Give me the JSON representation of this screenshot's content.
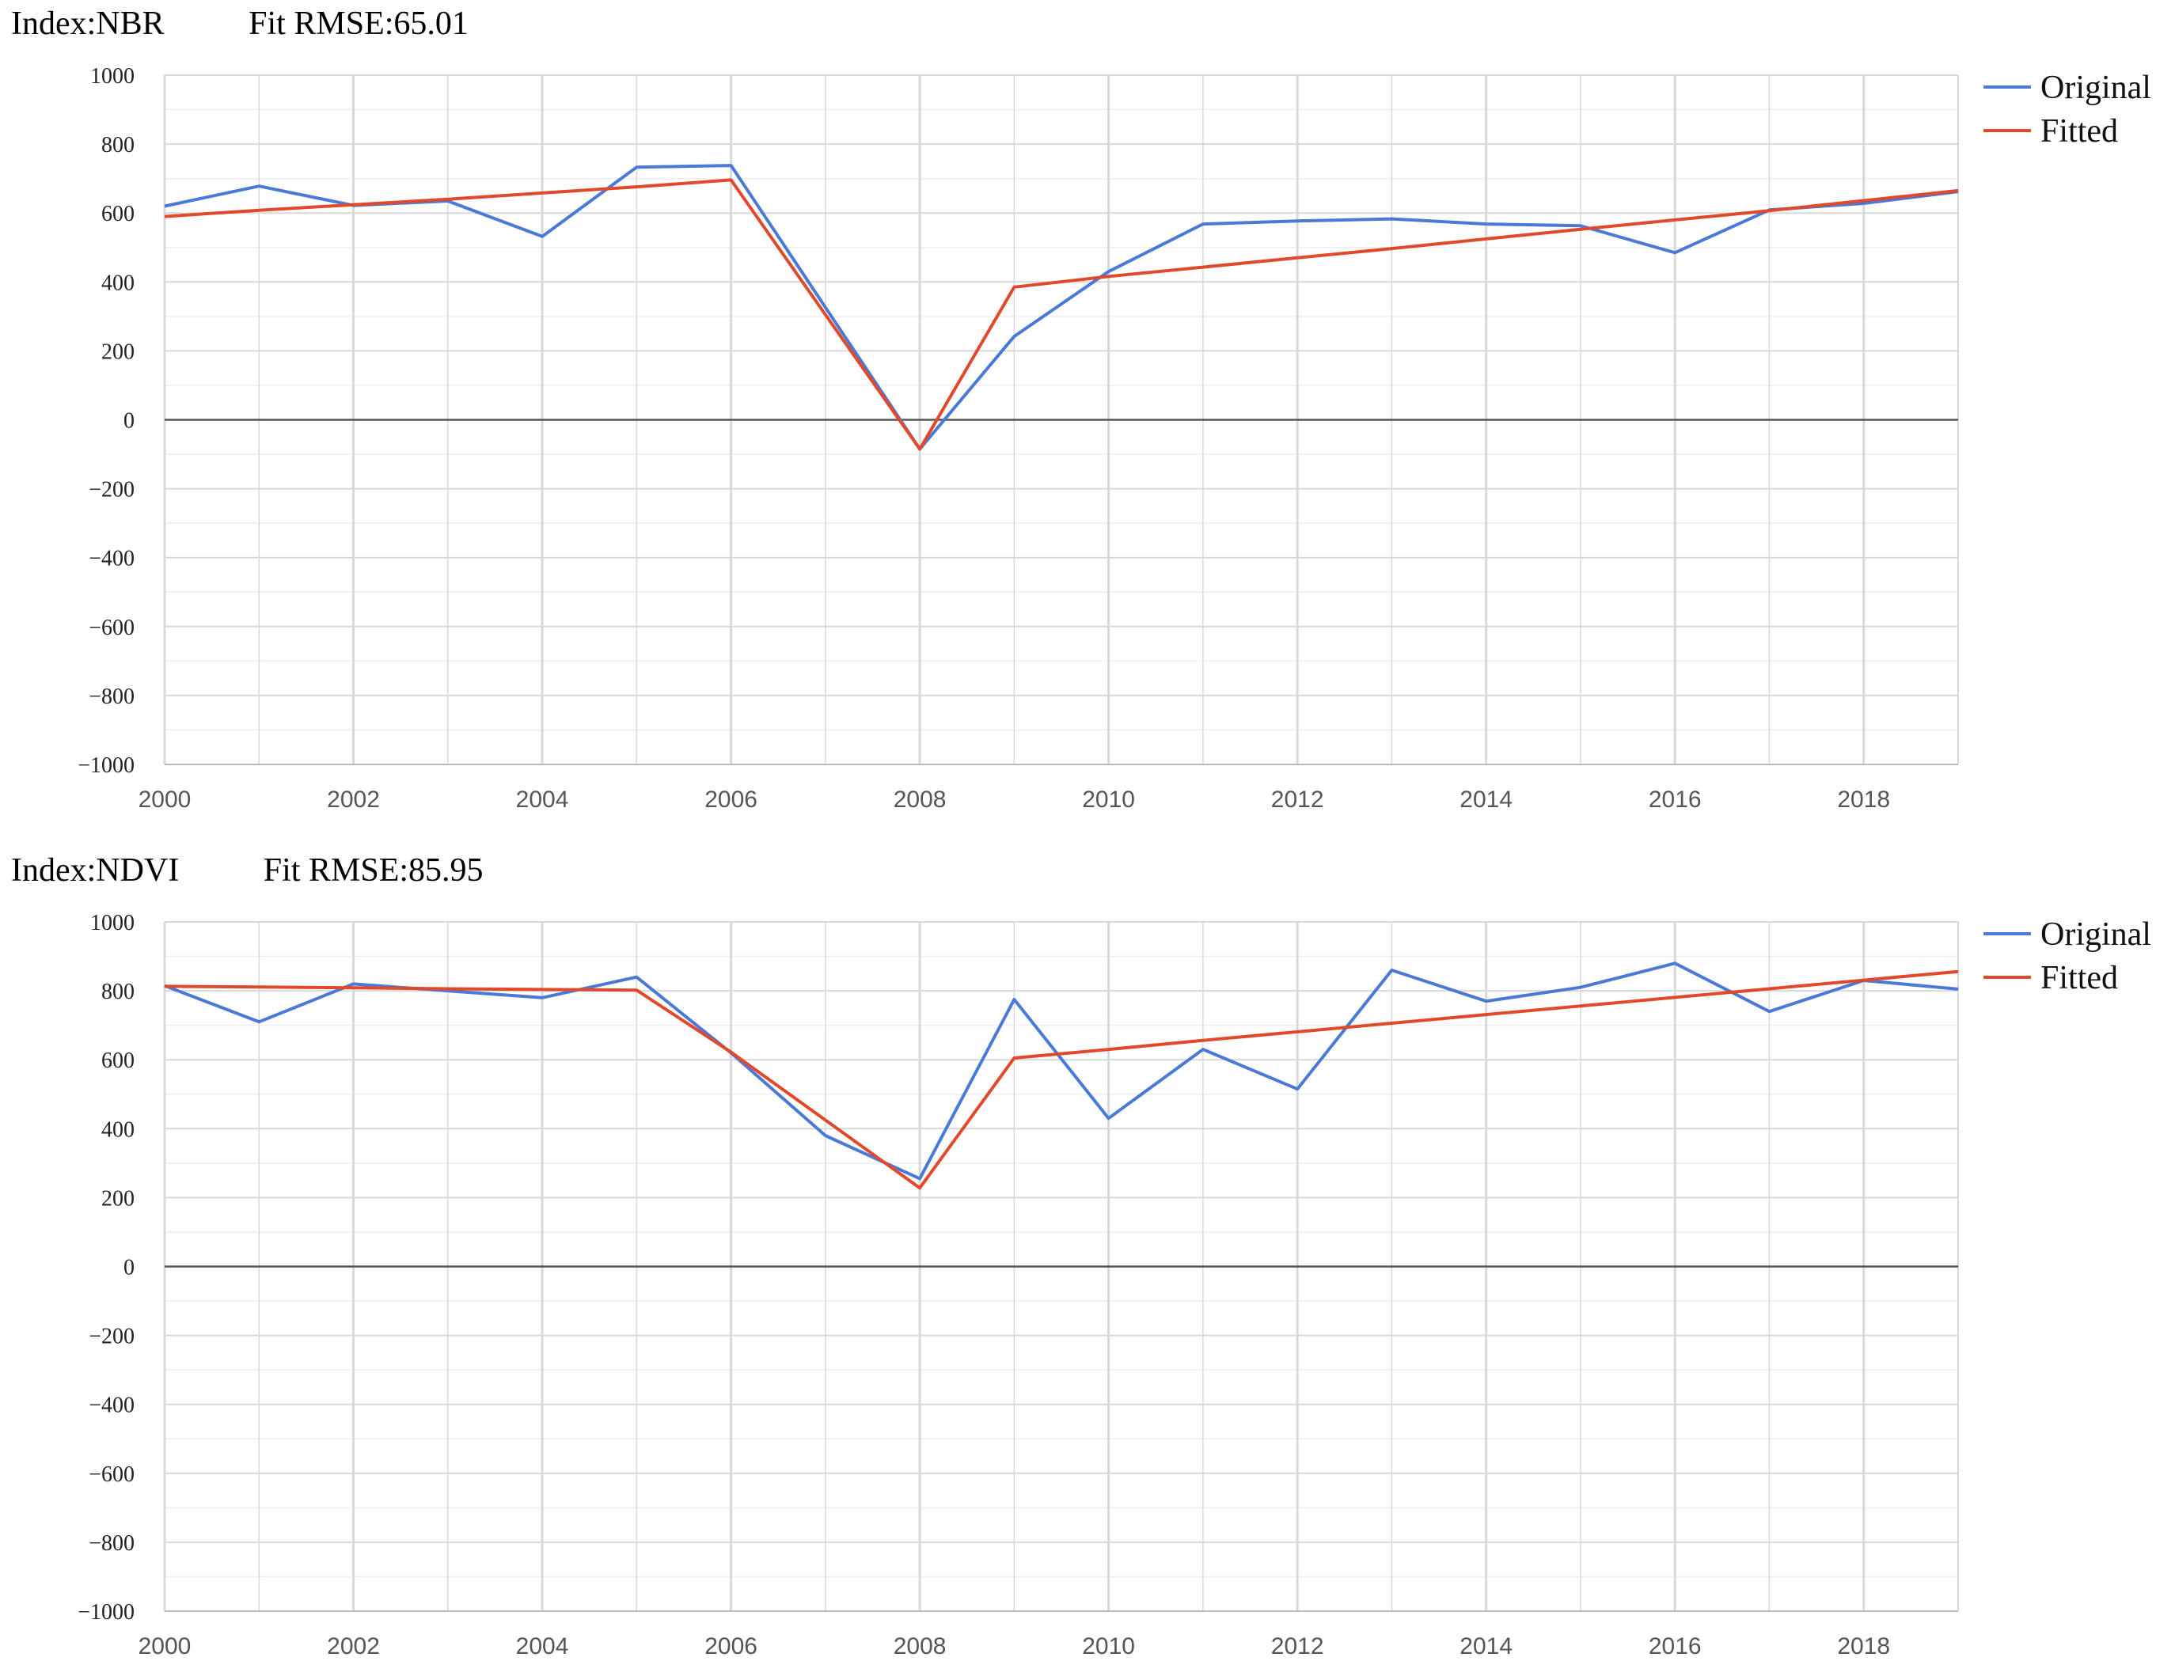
{
  "colors": {
    "original": "#4a7ad8",
    "fitted": "#e04a2a",
    "grid_major": "#d9d9d9",
    "grid_minor": "#eeeeee",
    "zero_line": "#555555"
  },
  "chart_data": [
    {
      "type": "line",
      "header": {
        "index_label": "Index:NBR",
        "rmse_label": "Fit RMSE:65.01"
      },
      "x": [
        2000,
        2001,
        2002,
        2003,
        2004,
        2005,
        2006,
        2007,
        2008,
        2009,
        2010,
        2011,
        2012,
        2013,
        2014,
        2015,
        2016,
        2017,
        2018,
        2019
      ],
      "xlim": [
        2000,
        2019
      ],
      "ylim": [
        -1000,
        1000
      ],
      "x_ticks": [
        2000,
        2002,
        2004,
        2006,
        2008,
        2010,
        2012,
        2014,
        2016,
        2018
      ],
      "y_ticks": [
        1000,
        800,
        600,
        400,
        200,
        0,
        -200,
        -400,
        -600,
        -800,
        -1000
      ],
      "y_tick_labels": [
        "1000",
        "800",
        "600",
        "400",
        "200",
        "0",
        "−200",
        "−400",
        "−600",
        "−800",
        "−1000"
      ],
      "grid": true,
      "legend": "top-right",
      "series": [
        {
          "name": "Original",
          "color": "#4a7ad8",
          "values": [
            620,
            678,
            622,
            635,
            532,
            733,
            738,
            null,
            -85,
            242,
            430,
            568,
            577,
            583,
            568,
            563,
            485,
            609,
            628,
            662
          ]
        },
        {
          "name": "Fitted",
          "color": "#e04a2a",
          "values": [
            590,
            608,
            624,
            640,
            658,
            676,
            696,
            null,
            -85,
            385,
            416,
            443,
            470,
            497,
            525,
            553,
            580,
            607,
            636,
            665
          ]
        }
      ]
    },
    {
      "type": "line",
      "header": {
        "index_label": "Index:NDVI",
        "rmse_label": "Fit RMSE:85.95"
      },
      "x": [
        2000,
        2001,
        2002,
        2003,
        2004,
        2005,
        2006,
        2007,
        2008,
        2009,
        2010,
        2011,
        2012,
        2013,
        2014,
        2015,
        2016,
        2017,
        2018,
        2019
      ],
      "xlim": [
        2000,
        2019
      ],
      "ylim": [
        -1000,
        1000
      ],
      "x_ticks": [
        2000,
        2002,
        2004,
        2006,
        2008,
        2010,
        2012,
        2014,
        2016,
        2018
      ],
      "y_ticks": [
        1000,
        800,
        600,
        400,
        200,
        0,
        -200,
        -400,
        -600,
        -800,
        -1000
      ],
      "y_tick_labels": [
        "1000",
        "800",
        "600",
        "400",
        "200",
        "0",
        "−200",
        "−400",
        "−600",
        "−800",
        "−1000"
      ],
      "grid": true,
      "legend": "top-right",
      "series": [
        {
          "name": "Original",
          "color": "#4a7ad8",
          "values": [
            815,
            710,
            820,
            800,
            780,
            840,
            620,
            380,
            255,
            775,
            430,
            630,
            515,
            860,
            770,
            810,
            880,
            740,
            830,
            805
          ]
        },
        {
          "name": "Fitted",
          "color": "#e04a2a",
          "values": [
            813,
            811,
            809,
            806,
            804,
            802,
            622,
            425,
            228,
            605,
            630,
            656,
            681,
            706,
            731,
            756,
            781,
            806,
            831,
            856
          ]
        }
      ]
    }
  ]
}
